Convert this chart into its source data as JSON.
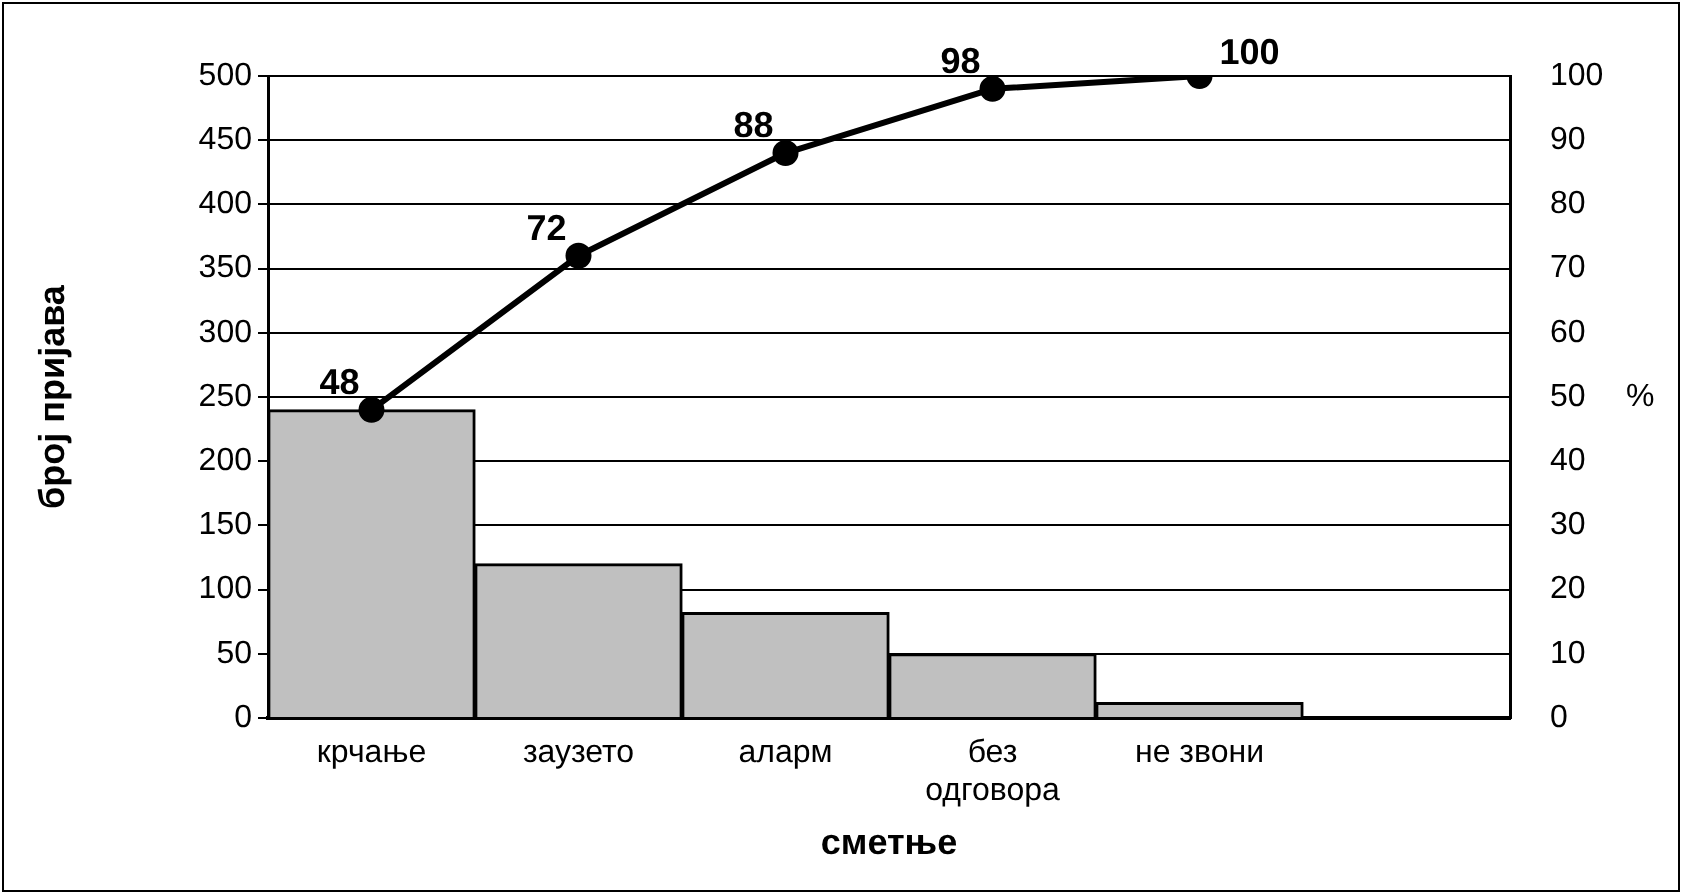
{
  "chart_data": {
    "type": "bar",
    "categories": [
      "крчање",
      "заузето",
      "аларм",
      "без одговора",
      "не звони",
      null
    ],
    "xlabel": "сметње",
    "ylabel": "број пријава",
    "y2label": "%",
    "series": [
      {
        "color": "#c0c0c0",
        "values": [
          240,
          120,
          82,
          50,
          12,
          null
        ]
      },
      {
        "type": "line",
        "color": "#000000",
        "axis": "y2",
        "values": [
          48,
          72,
          88,
          98,
          100,
          null
        ],
        "value_labels": [
          "48",
          "72",
          "88",
          "98",
          "100",
          null
        ]
      }
    ],
    "ylim": [
      0,
      500
    ],
    "yticks": [
      0,
      50,
      100,
      150,
      200,
      250,
      300,
      350,
      400,
      450,
      500
    ],
    "y2lim": [
      0,
      100
    ],
    "y2ticks": [
      0,
      10,
      20,
      30,
      40,
      50,
      60,
      70,
      80,
      90,
      100
    ],
    "grid": "y",
    "marker": "circle",
    "legend": false
  }
}
